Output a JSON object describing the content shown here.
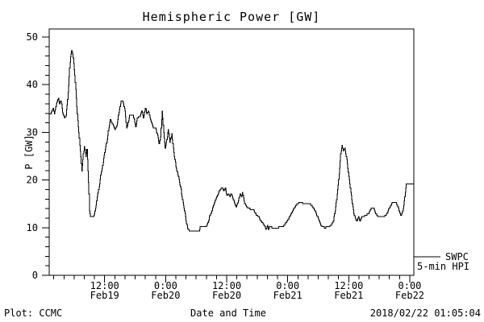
{
  "chart_data": {
    "type": "line",
    "title": "Hemispheric Power [GW]",
    "xlabel": "Date and Time",
    "ylabel": "P [GW]",
    "line_color": "#000000",
    "background_color": "#ffffff",
    "grid": false,
    "x_unit": "hours since Feb19 00:00",
    "xlim": [
      1.1,
      72.8
    ],
    "ylim": [
      0,
      51.7
    ],
    "y_major_ticks": [
      0,
      10,
      20,
      30,
      40,
      50
    ],
    "y_minor_step": 2,
    "x_major_ticks": [
      {
        "hour": 12,
        "time": "12:00",
        "date": "Feb19"
      },
      {
        "hour": 24,
        "time": "0:00",
        "date": "Feb20"
      },
      {
        "hour": 36,
        "time": "12:00",
        "date": "Feb20"
      },
      {
        "hour": 48,
        "time": "0:00",
        "date": "Feb21"
      },
      {
        "hour": 60,
        "time": "12:00",
        "date": "Feb21"
      },
      {
        "hour": 72,
        "time": "0:00",
        "date": "Feb22"
      }
    ],
    "x_minor_step": 2,
    "series": [
      {
        "name": "SWPC 5-min HPI",
        "points": [
          [
            1.1,
            33.8
          ],
          [
            1.5,
            34.1
          ],
          [
            1.9,
            35.2
          ],
          [
            2.1,
            33.8
          ],
          [
            2.4,
            35.5
          ],
          [
            2.7,
            36.7
          ],
          [
            2.9,
            37.2
          ],
          [
            3.1,
            36.1
          ],
          [
            3.4,
            36.7
          ],
          [
            3.7,
            34.2
          ],
          [
            4.1,
            33.0
          ],
          [
            4.4,
            33.6
          ],
          [
            4.7,
            36.9
          ],
          [
            4.9,
            40.0
          ],
          [
            5.1,
            43.5
          ],
          [
            5.3,
            46.0
          ],
          [
            5.5,
            47.2
          ],
          [
            5.7,
            46.5
          ],
          [
            5.9,
            44.5
          ],
          [
            6.1,
            42.0
          ],
          [
            6.3,
            39.0
          ],
          [
            6.5,
            35.5
          ],
          [
            6.7,
            32.4
          ],
          [
            6.9,
            29.9
          ],
          [
            7.1,
            27.4
          ],
          [
            7.3,
            24.8
          ],
          [
            7.5,
            21.8
          ],
          [
            7.8,
            25.5
          ],
          [
            8.0,
            27.0
          ],
          [
            8.3,
            25.0
          ],
          [
            8.5,
            26.3
          ],
          [
            8.7,
            22.0
          ],
          [
            8.9,
            17.0
          ],
          [
            9.0,
            13.5
          ],
          [
            9.2,
            12.2
          ],
          [
            9.6,
            12.3
          ],
          [
            9.9,
            12.5
          ],
          [
            10.2,
            14.0
          ],
          [
            10.5,
            16.5
          ],
          [
            10.9,
            18.5
          ],
          [
            11.2,
            21.0
          ],
          [
            11.5,
            22.5
          ],
          [
            11.8,
            24.5
          ],
          [
            12.1,
            26.5
          ],
          [
            12.5,
            28.5
          ],
          [
            12.8,
            31.0
          ],
          [
            13.1,
            32.7
          ],
          [
            13.4,
            32.0
          ],
          [
            13.7,
            31.5
          ],
          [
            14.0,
            30.6
          ],
          [
            14.4,
            31.5
          ],
          [
            14.7,
            33.5
          ],
          [
            15.0,
            35.5
          ],
          [
            15.2,
            36.6
          ],
          [
            15.6,
            36.4
          ],
          [
            16.0,
            34.5
          ],
          [
            16.3,
            30.8
          ],
          [
            16.6,
            32.0
          ],
          [
            16.9,
            33.6
          ],
          [
            17.6,
            33.5
          ],
          [
            18.1,
            31.2
          ],
          [
            18.4,
            33.0
          ],
          [
            18.9,
            33.4
          ],
          [
            19.3,
            34.6
          ],
          [
            19.6,
            33.0
          ],
          [
            20.0,
            35.1
          ],
          [
            20.3,
            33.8
          ],
          [
            20.6,
            34.6
          ],
          [
            20.9,
            33.0
          ],
          [
            21.2,
            32.1
          ],
          [
            21.6,
            30.9
          ],
          [
            22.0,
            31.0
          ],
          [
            22.4,
            29.3
          ],
          [
            22.7,
            27.7
          ],
          [
            23.0,
            29.0
          ],
          [
            23.3,
            34.4
          ],
          [
            23.6,
            30.0
          ],
          [
            23.9,
            26.8
          ],
          [
            24.2,
            28.5
          ],
          [
            24.5,
            30.7
          ],
          [
            24.8,
            28.0
          ],
          [
            25.2,
            29.6
          ],
          [
            25.6,
            25.7
          ],
          [
            26.0,
            22.9
          ],
          [
            26.5,
            20.6
          ],
          [
            26.9,
            18.5
          ],
          [
            27.3,
            16.0
          ],
          [
            27.7,
            13.5
          ],
          [
            28.0,
            11.5
          ],
          [
            28.3,
            9.8
          ],
          [
            28.6,
            9.3
          ],
          [
            30.6,
            9.3
          ],
          [
            30.8,
            10.1
          ],
          [
            31.8,
            10.1
          ],
          [
            32.3,
            11.0
          ],
          [
            32.6,
            12.2
          ],
          [
            33.1,
            13.6
          ],
          [
            33.5,
            15.0
          ],
          [
            34.0,
            16.4
          ],
          [
            34.6,
            17.8
          ],
          [
            35.1,
            18.4
          ],
          [
            35.4,
            17.7
          ],
          [
            35.7,
            18.2
          ],
          [
            36.0,
            16.7
          ],
          [
            36.3,
            17.2
          ],
          [
            36.6,
            16.5
          ],
          [
            36.8,
            17.2
          ],
          [
            37.1,
            16.5
          ],
          [
            37.5,
            15.3
          ],
          [
            37.9,
            14.3
          ],
          [
            38.3,
            15.5
          ],
          [
            38.6,
            17.2
          ],
          [
            38.9,
            16.5
          ],
          [
            39.1,
            17.3
          ],
          [
            39.5,
            15.0
          ],
          [
            40.1,
            14.2
          ],
          [
            40.6,
            13.9
          ],
          [
            41.3,
            13.7
          ],
          [
            41.8,
            12.7
          ],
          [
            42.3,
            12.2
          ],
          [
            42.8,
            11.3
          ],
          [
            43.4,
            10.5
          ],
          [
            43.7,
            9.7
          ],
          [
            44.0,
            10.5
          ],
          [
            44.2,
            9.7
          ],
          [
            44.5,
            10.3
          ],
          [
            44.9,
            10.0
          ],
          [
            46.0,
            10.0
          ],
          [
            47.1,
            10.3
          ],
          [
            47.6,
            11.0
          ],
          [
            48.2,
            12.0
          ],
          [
            48.7,
            13.0
          ],
          [
            49.2,
            14.0
          ],
          [
            49.7,
            14.8
          ],
          [
            50.2,
            15.2
          ],
          [
            51.5,
            15.1
          ],
          [
            52.4,
            14.9
          ],
          [
            52.9,
            14.4
          ],
          [
            53.4,
            13.4
          ],
          [
            53.9,
            12.2
          ],
          [
            54.3,
            11.0
          ],
          [
            54.7,
            10.2
          ],
          [
            55.3,
            10.0
          ],
          [
            56.2,
            10.3
          ],
          [
            56.7,
            10.8
          ],
          [
            57.0,
            11.5
          ],
          [
            57.3,
            13.5
          ],
          [
            57.6,
            16.0
          ],
          [
            57.9,
            19.0
          ],
          [
            58.2,
            22.5
          ],
          [
            58.4,
            25.5
          ],
          [
            58.7,
            27.4
          ],
          [
            58.9,
            26.2
          ],
          [
            59.2,
            26.7
          ],
          [
            59.5,
            25.0
          ],
          [
            59.8,
            22.5
          ],
          [
            60.1,
            20.0
          ],
          [
            60.4,
            17.5
          ],
          [
            60.7,
            15.0
          ],
          [
            61.0,
            13.0
          ],
          [
            61.3,
            12.0
          ],
          [
            61.6,
            11.3
          ],
          [
            61.9,
            12.4
          ],
          [
            62.2,
            11.4
          ],
          [
            62.6,
            12.3
          ],
          [
            63.2,
            12.5
          ],
          [
            63.9,
            13.0
          ],
          [
            64.3,
            13.9
          ],
          [
            64.8,
            14.2
          ],
          [
            65.3,
            13.0
          ],
          [
            65.8,
            12.3
          ],
          [
            66.9,
            12.2
          ],
          [
            67.5,
            13.0
          ],
          [
            68.0,
            14.2
          ],
          [
            68.5,
            15.2
          ],
          [
            69.3,
            15.3
          ],
          [
            69.8,
            14.0
          ],
          [
            70.1,
            12.8
          ],
          [
            70.3,
            12.5
          ],
          [
            70.6,
            13.5
          ],
          [
            70.9,
            15.5
          ],
          [
            71.1,
            17.5
          ],
          [
            71.3,
            19.1
          ],
          [
            72.8,
            19.1
          ]
        ]
      }
    ]
  },
  "legend": {
    "line1": "SWPC",
    "line2": "5-min HPI"
  },
  "footer": {
    "left": "Plot: CCMC",
    "right": "2018/02/22 01:05:04"
  }
}
